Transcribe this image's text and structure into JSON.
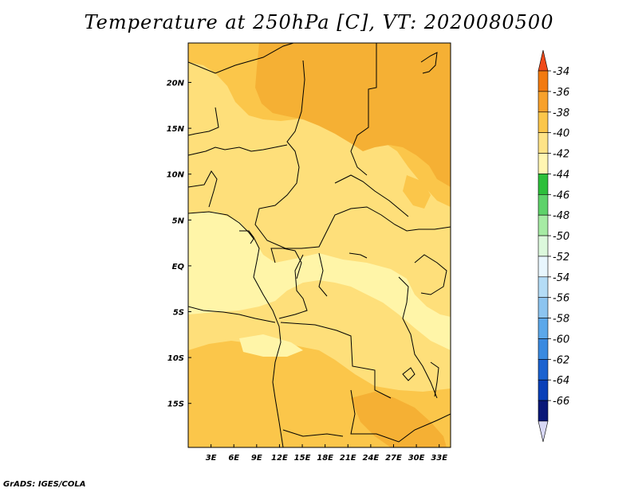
{
  "title": "Temperature at 250hPa [C], VT: 2020080500",
  "credit": "GrADS: IGES/COLA",
  "map": {
    "lon_ticks": [
      "3E",
      "6E",
      "9E",
      "12E",
      "15E",
      "18E",
      "21E",
      "24E",
      "27E",
      "30E",
      "33E"
    ],
    "lat_ticks": [
      "20N",
      "15N",
      "10N",
      "5N",
      "EQ",
      "5S",
      "10S",
      "15S"
    ],
    "lon_range": [
      0,
      34.5
    ],
    "lat_range": [
      -19.8,
      24.3
    ],
    "field_colors": {
      "-36_to_-38": "#f5a623",
      "-38_to_-40": "#fbc64a",
      "-40_to_-42": "#fedf7a",
      "-42_to_-44": "#fff5a8"
    }
  },
  "colorbar": {
    "levels": [
      "-34",
      "-36",
      "-38",
      "-40",
      "-42",
      "-44",
      "-46",
      "-48",
      "-50",
      "-52",
      "-54",
      "-56",
      "-58",
      "-60",
      "-62",
      "-64",
      "-66"
    ],
    "colors": [
      "#f04a1a",
      "#f27a10",
      "#f7a12c",
      "#fbc64a",
      "#fee387",
      "#fff6b2",
      "#2dbf3b",
      "#5ed26a",
      "#a6eba4",
      "#dcf8dc",
      "#e8f6fd",
      "#b4dcf6",
      "#8cc4f0",
      "#5ca8ea",
      "#3a8ae0",
      "#1a62d0",
      "#0a40b8",
      "#0a1878",
      "#d8d8f5"
    ]
  }
}
